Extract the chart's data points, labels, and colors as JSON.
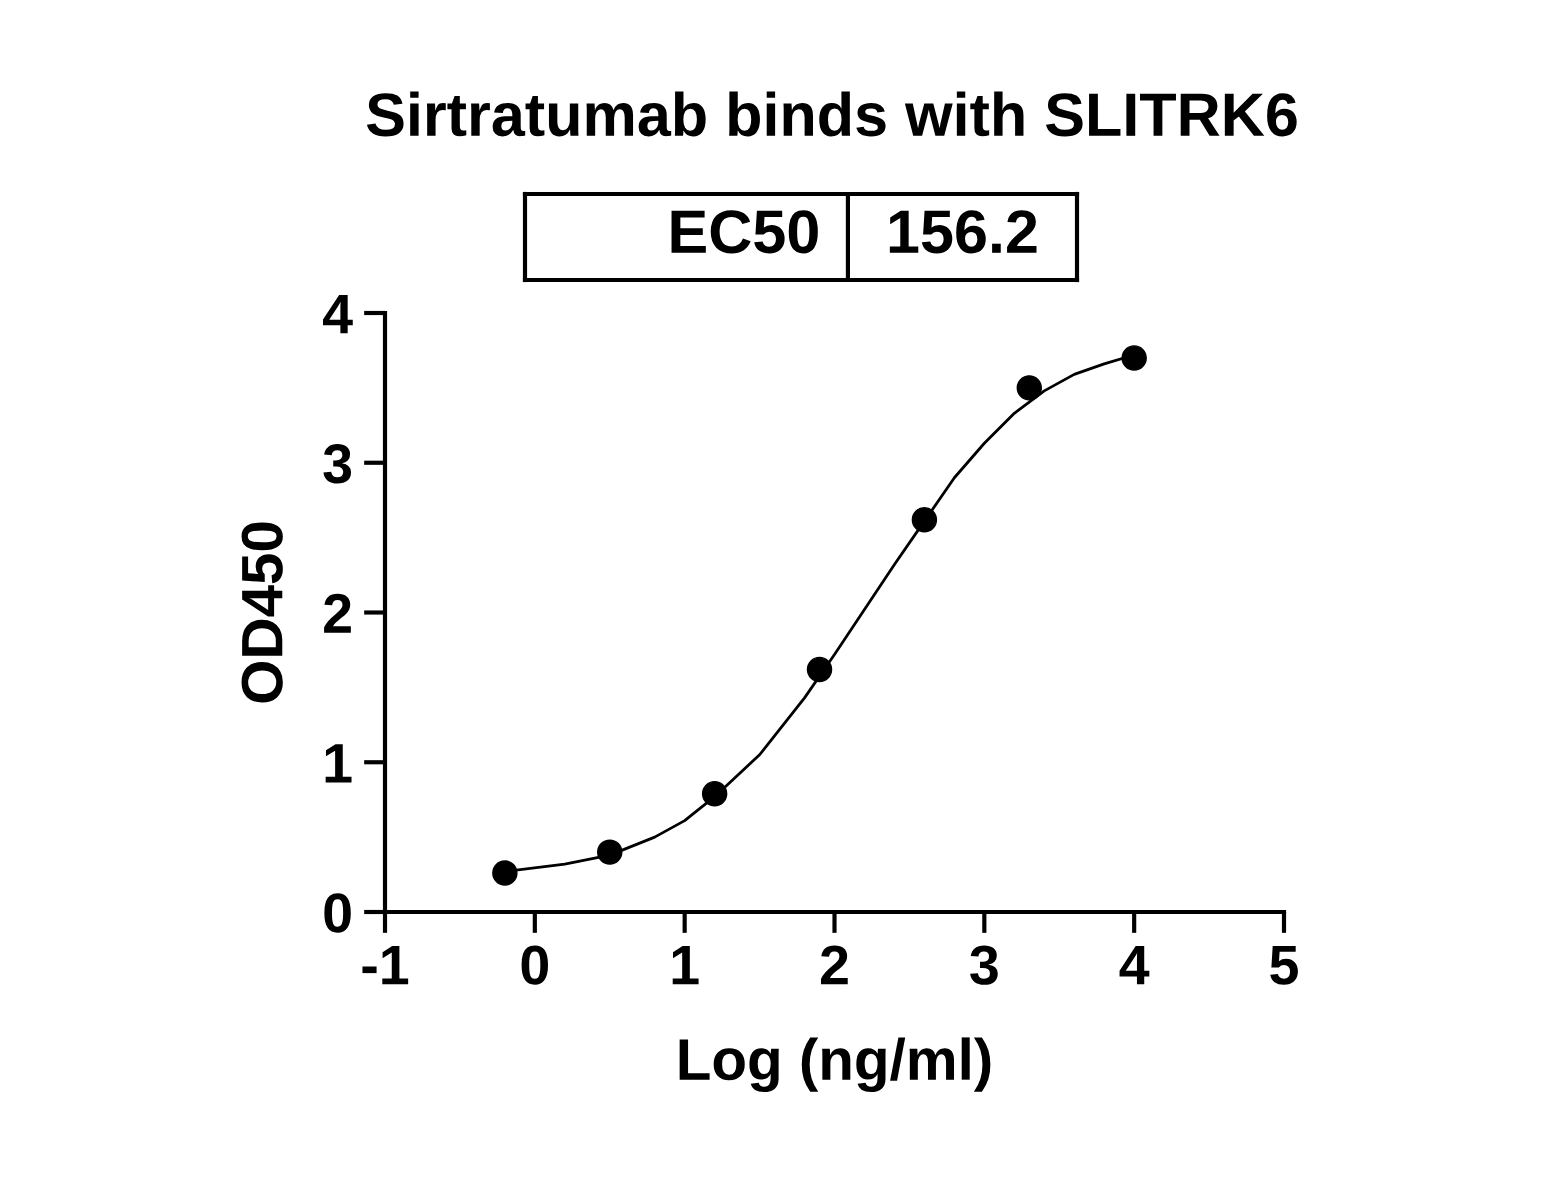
{
  "chart_data": {
    "type": "scatter",
    "title": "Sirtratumab binds with SLITRK6",
    "xlabel": "Log (ng/ml)",
    "ylabel": "OD450",
    "annotations": [
      "EC50",
      "156.2"
    ],
    "xlim": [
      -1,
      5
    ],
    "xticks": [
      -1,
      0,
      1,
      2,
      3,
      4,
      5
    ],
    "ylim": [
      0,
      4
    ],
    "yticks": [
      0,
      1,
      2,
      3,
      4
    ],
    "grid": false,
    "marker": "circle",
    "series": [
      {
        "color": "#000000",
        "x": [
          -0.2,
          0.5,
          1.2,
          1.9,
          2.6,
          3.3,
          4.0
        ],
        "values": [
          0.26,
          0.4,
          0.79,
          1.62,
          2.62,
          3.5,
          3.7
        ]
      },
      {
        "type": "line",
        "color": "#000000",
        "marker": "none",
        "line_style": "solid",
        "x": [
          -0.2,
          0.2,
          0.5,
          0.8,
          1.0,
          1.2,
          1.5,
          1.8,
          2.0,
          2.2,
          2.4,
          2.6,
          2.8,
          3.0,
          3.2,
          3.4,
          3.6,
          3.8,
          4.0
        ],
        "values": [
          0.27,
          0.32,
          0.38,
          0.5,
          0.61,
          0.77,
          1.05,
          1.43,
          1.72,
          2.02,
          2.32,
          2.61,
          2.9,
          3.13,
          3.33,
          3.48,
          3.59,
          3.66,
          3.72
        ]
      }
    ]
  }
}
